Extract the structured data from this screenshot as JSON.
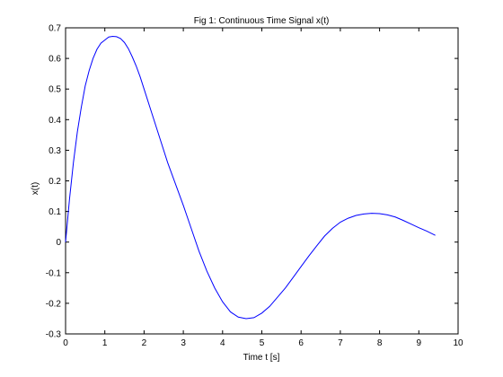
{
  "chart_data": {
    "type": "line",
    "title": "Fig 1: Continuous Time Signal x(t)",
    "xlabel": "Time t [s]",
    "ylabel": "x(t)",
    "xlim": [
      0,
      10
    ],
    "ylim": [
      -0.3,
      0.7
    ],
    "xticks": [
      "0",
      "1",
      "2",
      "3",
      "4",
      "5",
      "6",
      "7",
      "8",
      "9",
      "10"
    ],
    "yticks": [
      "-0.3",
      "-0.2",
      "-0.1",
      "0",
      "0.1",
      "0.2",
      "0.3",
      "0.4",
      "0.5",
      "0.6",
      "0.7"
    ],
    "grid": false,
    "legend": false,
    "colors": {
      "line": "#0000ff",
      "axes": "#000000",
      "background": "#ffffff"
    },
    "series": [
      {
        "x": [
          0,
          0.1,
          0.2,
          0.3,
          0.4,
          0.5,
          0.6,
          0.7,
          0.8,
          0.9,
          1.0,
          1.1,
          1.2,
          1.3,
          1.4,
          1.5,
          1.6,
          1.7,
          1.8,
          1.9,
          2.0,
          2.2,
          2.4,
          2.6,
          2.8,
          3.0,
          3.2,
          3.4,
          3.6,
          3.8,
          4.0,
          4.2,
          4.4,
          4.6,
          4.8,
          5.0,
          5.2,
          5.4,
          5.6,
          5.8,
          6.0,
          6.2,
          6.4,
          6.6,
          6.8,
          7.0,
          7.2,
          7.4,
          7.6,
          7.8,
          8.0,
          8.2,
          8.4,
          8.6,
          8.8,
          9.0,
          9.2,
          9.42
        ],
        "values": [
          0.0,
          0.14,
          0.26,
          0.36,
          0.44,
          0.51,
          0.56,
          0.6,
          0.63,
          0.65,
          0.66,
          0.67,
          0.672,
          0.671,
          0.665,
          0.652,
          0.632,
          0.605,
          0.575,
          0.54,
          0.5,
          0.42,
          0.34,
          0.26,
          0.19,
          0.12,
          0.045,
          -0.03,
          -0.095,
          -0.15,
          -0.195,
          -0.228,
          -0.245,
          -0.25,
          -0.247,
          -0.232,
          -0.21,
          -0.18,
          -0.15,
          -0.115,
          -0.08,
          -0.045,
          -0.012,
          0.02,
          0.045,
          0.065,
          0.078,
          0.087,
          0.092,
          0.094,
          0.093,
          0.089,
          0.082,
          0.071,
          0.059,
          0.047,
          0.036,
          0.022
        ]
      }
    ]
  }
}
